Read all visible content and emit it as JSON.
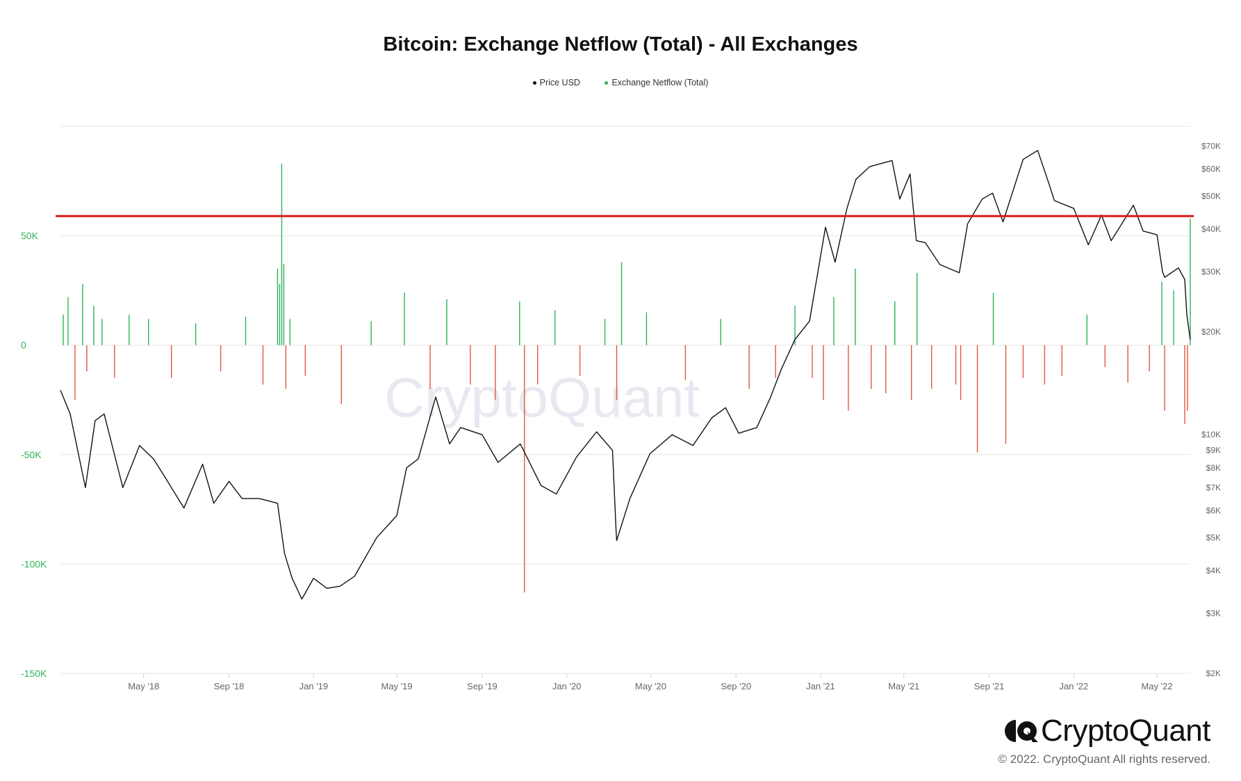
{
  "chart_data": {
    "type": "bar",
    "title": "Bitcoin: Exchange Netflow (Total) - All Exchanges",
    "legend": [
      "Price USD",
      "Exchange Netflow (Total)"
    ],
    "legend_position": "top-center",
    "grid": true,
    "x_tick_labels": [
      "May '18",
      "Sep '18",
      "Jan '19",
      "May '19",
      "Sep '19",
      "Jan '20",
      "May '20",
      "Sep '20",
      "Jan '21",
      "May '21",
      "Sep '21",
      "Jan '22",
      "May '22"
    ],
    "x_range": [
      "2018-01-01",
      "2022-06-18"
    ],
    "left_axis": {
      "series": "Exchange Netflow (Total)",
      "ylim": [
        -150000,
        100000
      ],
      "ticks": [
        50000,
        0,
        -50000,
        -100000,
        -150000
      ],
      "tick_labels": [
        "50K",
        "0",
        "-50K",
        "-100K",
        "-150K"
      ]
    },
    "right_axis": {
      "series": "Price USD",
      "scale": "log",
      "ylim": [
        2000,
        80000
      ],
      "ticks": [
        70000,
        60000,
        50000,
        40000,
        30000,
        20000,
        10000,
        9000,
        8000,
        7000,
        6000,
        5000,
        4000,
        3000,
        2000
      ],
      "tick_labels": [
        "$70K",
        "$60K",
        "$50K",
        "$40K",
        "$30K",
        "$20K",
        "$10K",
        "$9K",
        "$8K",
        "$7K",
        "$6K",
        "$5K",
        "$4K",
        "$3K",
        "$2K"
      ]
    },
    "reference_line": {
      "value": 59000,
      "axis": "left",
      "color": "#d81a1a"
    },
    "series": [
      {
        "name": "Price USD",
        "type": "line",
        "color": "#111111",
        "x": [
          "2018-01-01",
          "2018-01-15",
          "2018-02-06",
          "2018-02-20",
          "2018-03-05",
          "2018-04-01",
          "2018-04-25",
          "2018-05-15",
          "2018-06-01",
          "2018-06-28",
          "2018-07-25",
          "2018-08-10",
          "2018-09-01",
          "2018-09-20",
          "2018-10-15",
          "2018-11-10",
          "2018-11-20",
          "2018-12-01",
          "2018-12-15",
          "2019-01-01",
          "2019-01-20",
          "2019-02-08",
          "2019-03-01",
          "2019-04-02",
          "2019-05-01",
          "2019-05-15",
          "2019-06-01",
          "2019-06-26",
          "2019-07-16",
          "2019-08-01",
          "2019-09-01",
          "2019-09-24",
          "2019-10-26",
          "2019-11-25",
          "2019-12-17",
          "2020-01-15",
          "2020-02-13",
          "2020-03-07",
          "2020-03-12",
          "2020-03-13",
          "2020-04-01",
          "2020-04-30",
          "2020-06-01",
          "2020-07-01",
          "2020-07-28",
          "2020-08-17",
          "2020-09-05",
          "2020-10-01",
          "2020-10-21",
          "2020-11-05",
          "2020-11-25",
          "2020-12-16",
          "2021-01-08",
          "2021-01-22",
          "2021-02-08",
          "2021-02-21",
          "2021-03-13",
          "2021-04-14",
          "2021-04-25",
          "2021-05-10",
          "2021-05-19",
          "2021-06-01",
          "2021-06-22",
          "2021-07-20",
          "2021-08-01",
          "2021-08-22",
          "2021-09-06",
          "2021-09-21",
          "2021-10-20",
          "2021-11-10",
          "2021-11-26",
          "2021-12-04",
          "2022-01-01",
          "2022-01-22",
          "2022-02-10",
          "2022-02-24",
          "2022-03-28",
          "2022-04-11",
          "2022-05-01",
          "2022-05-09",
          "2022-05-12",
          "2022-06-01",
          "2022-06-10",
          "2022-06-13",
          "2022-06-18"
        ],
        "values": [
          13500,
          11500,
          7000,
          11000,
          11500,
          7000,
          9300,
          8500,
          7500,
          6100,
          8200,
          6300,
          7300,
          6500,
          6500,
          6300,
          4500,
          3800,
          3300,
          3800,
          3550,
          3600,
          3850,
          5000,
          5800,
          8000,
          8500,
          12900,
          9400,
          10500,
          10000,
          8300,
          9400,
          7100,
          6700,
          8600,
          10200,
          9000,
          5300,
          4900,
          6500,
          8800,
          10000,
          9300,
          11200,
          12000,
          10100,
          10500,
          12900,
          15500,
          19000,
          21500,
          40500,
          32000,
          46000,
          56000,
          61000,
          63500,
          49000,
          58000,
          37000,
          36500,
          31500,
          29800,
          41500,
          49000,
          51000,
          42000,
          64000,
          68000,
          54500,
          48500,
          46000,
          36000,
          44000,
          37000,
          47000,
          39500,
          38500,
          30000,
          28900,
          30800,
          28500,
          22500,
          19000
        ]
      },
      {
        "name": "Exchange Netflow (Total)",
        "type": "bar",
        "colors": {
          "positive": "#2fb35a",
          "negative": "#e0573b"
        },
        "x": [
          "2018-01-05",
          "2018-01-12",
          "2018-01-22",
          "2018-02-02",
          "2018-02-08",
          "2018-02-18",
          "2018-03-02",
          "2018-03-20",
          "2018-04-10",
          "2018-05-08",
          "2018-06-10",
          "2018-07-15",
          "2018-08-20",
          "2018-09-25",
          "2018-10-20",
          "2018-11-10",
          "2018-11-13",
          "2018-11-16",
          "2018-11-19",
          "2018-11-22",
          "2018-11-28",
          "2018-12-20",
          "2019-02-10",
          "2019-03-25",
          "2019-05-12",
          "2019-06-18",
          "2019-07-12",
          "2019-08-15",
          "2019-09-20",
          "2019-10-25",
          "2019-11-01",
          "2019-11-20",
          "2019-12-15",
          "2020-01-20",
          "2020-02-25",
          "2020-03-13",
          "2020-03-20",
          "2020-04-25",
          "2020-06-20",
          "2020-08-10",
          "2020-09-20",
          "2020-10-28",
          "2020-11-25",
          "2020-12-20",
          "2021-01-05",
          "2021-01-20",
          "2021-02-10",
          "2021-02-20",
          "2021-03-15",
          "2021-04-05",
          "2021-04-18",
          "2021-05-12",
          "2021-05-20",
          "2021-06-10",
          "2021-07-15",
          "2021-07-22",
          "2021-08-15",
          "2021-09-07",
          "2021-09-25",
          "2021-10-20",
          "2021-11-20",
          "2021-12-15",
          "2022-01-20",
          "2022-02-15",
          "2022-03-20",
          "2022-04-20",
          "2022-05-08",
          "2022-05-12",
          "2022-05-25",
          "2022-06-10",
          "2022-06-14",
          "2022-06-18"
        ],
        "values": [
          14000,
          22000,
          -25000,
          28000,
          -12000,
          18000,
          12000,
          -15000,
          14000,
          12000,
          -15000,
          10000,
          -12000,
          13000,
          -18000,
          35000,
          28000,
          83000,
          37000,
          -20000,
          12000,
          -14000,
          -27000,
          11000,
          24000,
          -20000,
          21000,
          -18000,
          -25000,
          20000,
          -113000,
          -18000,
          16000,
          -14000,
          12000,
          -25000,
          38000,
          15000,
          -16000,
          12000,
          -20000,
          -15000,
          18000,
          -15000,
          -25000,
          22000,
          -30000,
          35000,
          -20000,
          -22000,
          20000,
          -25000,
          33000,
          -20000,
          -18000,
          -25000,
          -49000,
          24000,
          -45000,
          -15000,
          -18000,
          -14000,
          14000,
          -10000,
          -17000,
          -12000,
          29000,
          -30000,
          25000,
          -36000,
          -30000,
          58000
        ]
      }
    ]
  },
  "watermark": "CryptoQuant",
  "brand": {
    "name": "CryptoQuant",
    "copyright": "© 2022. CryptoQuant All rights reserved."
  },
  "colors": {
    "axis_left_text": "#2fb35a",
    "axis_text": "#666666",
    "grid": "#e6e6e6"
  }
}
